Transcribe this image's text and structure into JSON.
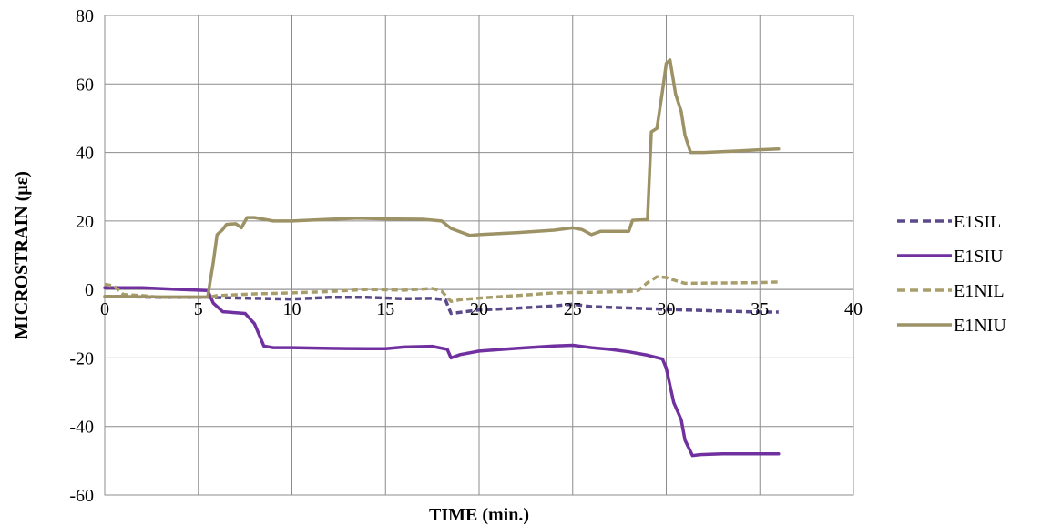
{
  "chart_data": {
    "type": "line",
    "xlabel": "TIME (min.)",
    "ylabel": "MICROSTRAIN (με)",
    "xlim": [
      0,
      40
    ],
    "ylim": [
      -60,
      80
    ],
    "x_ticks": [
      "0",
      "5",
      "10",
      "15",
      "20",
      "25",
      "30",
      "35",
      "40"
    ],
    "y_ticks": [
      "80",
      "60",
      "40",
      "20",
      "0",
      "-20",
      "-40",
      "-60"
    ],
    "grid": true,
    "legend_position": "right",
    "series": [
      {
        "name": "E1SIL",
        "color": "#5b4a8a",
        "dashed": true,
        "points": [
          [
            0,
            -2
          ],
          [
            3,
            -2.3
          ],
          [
            5.5,
            -2.3
          ],
          [
            8,
            -2.6
          ],
          [
            10,
            -2.8
          ],
          [
            12,
            -2.3
          ],
          [
            14,
            -2.3
          ],
          [
            16,
            -2.7
          ],
          [
            17.5,
            -2.6
          ],
          [
            18.2,
            -3
          ],
          [
            18.5,
            -7
          ],
          [
            20,
            -6
          ],
          [
            22,
            -5.5
          ],
          [
            24,
            -4.8
          ],
          [
            25,
            -4.3
          ],
          [
            26,
            -5
          ],
          [
            28,
            -5.4
          ],
          [
            29,
            -5.6
          ],
          [
            30,
            -5.8
          ],
          [
            31,
            -6
          ],
          [
            33,
            -6.3
          ],
          [
            35,
            -6.6
          ],
          [
            36,
            -6.6
          ]
        ]
      },
      {
        "name": "E1SIU",
        "color": "#7030a0",
        "dashed": false,
        "points": [
          [
            0,
            0.5
          ],
          [
            2,
            0.5
          ],
          [
            4,
            0
          ],
          [
            5.5,
            -0.3
          ],
          [
            5.8,
            -4
          ],
          [
            6.3,
            -6.5
          ],
          [
            7.5,
            -7
          ],
          [
            8,
            -10
          ],
          [
            8.5,
            -16.5
          ],
          [
            9,
            -17
          ],
          [
            10,
            -17
          ],
          [
            12,
            -17.2
          ],
          [
            14,
            -17.3
          ],
          [
            15,
            -17.3
          ],
          [
            16,
            -16.8
          ],
          [
            17.5,
            -16.6
          ],
          [
            18.3,
            -17.5
          ],
          [
            18.5,
            -20
          ],
          [
            19,
            -19
          ],
          [
            20,
            -18
          ],
          [
            22,
            -17.2
          ],
          [
            24,
            -16.5
          ],
          [
            25,
            -16.3
          ],
          [
            26,
            -17
          ],
          [
            27,
            -17.5
          ],
          [
            28,
            -18.2
          ],
          [
            29,
            -19.2
          ],
          [
            29.8,
            -20.3
          ],
          [
            30,
            -23
          ],
          [
            30.4,
            -33
          ],
          [
            30.8,
            -38
          ],
          [
            31,
            -44
          ],
          [
            31.4,
            -48.5
          ],
          [
            31.8,
            -48.2
          ],
          [
            33,
            -48
          ],
          [
            35,
            -48
          ],
          [
            36,
            -48
          ]
        ]
      },
      {
        "name": "E1NIL",
        "color": "#a89e6b",
        "dashed": true,
        "points": [
          [
            0,
            1.5
          ],
          [
            0.5,
            1
          ],
          [
            1,
            -1.5
          ],
          [
            2,
            -1.8
          ],
          [
            3,
            -2.3
          ],
          [
            5.5,
            -2.3
          ],
          [
            6,
            -1.8
          ],
          [
            8,
            -1.3
          ],
          [
            10,
            -1
          ],
          [
            12,
            -0.6
          ],
          [
            14,
            0
          ],
          [
            16,
            -0.2
          ],
          [
            17.5,
            0.3
          ],
          [
            18,
            -0.5
          ],
          [
            18.5,
            -3.5
          ],
          [
            19,
            -3
          ],
          [
            20,
            -2.5
          ],
          [
            22,
            -1.8
          ],
          [
            24,
            -1
          ],
          [
            26,
            -0.8
          ],
          [
            28,
            -0.6
          ],
          [
            28.5,
            -0.3
          ],
          [
            29,
            2
          ],
          [
            29.5,
            3.7
          ],
          [
            30,
            3.5
          ],
          [
            30.5,
            2.6
          ],
          [
            31,
            1.8
          ],
          [
            33,
            1.9
          ],
          [
            35,
            2
          ],
          [
            36,
            2.2
          ]
        ]
      },
      {
        "name": "E1NIU",
        "color": "#9c9265",
        "dashed": false,
        "points": [
          [
            0,
            -2
          ],
          [
            3,
            -2.2
          ],
          [
            5.5,
            -2.2
          ],
          [
            5.8,
            8
          ],
          [
            6,
            16
          ],
          [
            6.3,
            17.5
          ],
          [
            6.5,
            19
          ],
          [
            7,
            19.2
          ],
          [
            7.3,
            18
          ],
          [
            7.6,
            21
          ],
          [
            8,
            21
          ],
          [
            9,
            20
          ],
          [
            10,
            20
          ],
          [
            12,
            20.5
          ],
          [
            13.5,
            20.8
          ],
          [
            15,
            20.6
          ],
          [
            17,
            20.5
          ],
          [
            18,
            20
          ],
          [
            18.5,
            17.8
          ],
          [
            19.5,
            15.8
          ],
          [
            20,
            16
          ],
          [
            22,
            16.6
          ],
          [
            24,
            17.3
          ],
          [
            25,
            18
          ],
          [
            25.5,
            17.5
          ],
          [
            26,
            16
          ],
          [
            26.5,
            17
          ],
          [
            28,
            17
          ],
          [
            28.2,
            20.2
          ],
          [
            29,
            20.4
          ],
          [
            29.2,
            46
          ],
          [
            29.5,
            47
          ],
          [
            29.8,
            58
          ],
          [
            30,
            66
          ],
          [
            30.2,
            67
          ],
          [
            30.5,
            57
          ],
          [
            30.8,
            52
          ],
          [
            31,
            45
          ],
          [
            31.3,
            40
          ],
          [
            32,
            40
          ],
          [
            34,
            40.5
          ],
          [
            35,
            40.8
          ],
          [
            36,
            41
          ]
        ]
      }
    ]
  }
}
